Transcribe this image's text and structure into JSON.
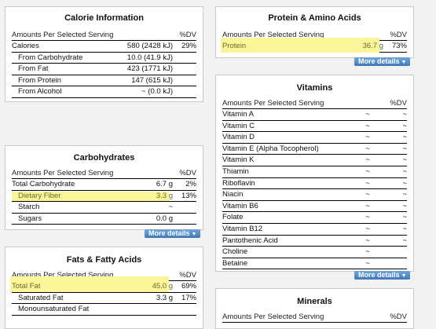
{
  "calorie": {
    "title": "Calorie Information",
    "head": {
      "name": "Amounts Per Selected Serving",
      "dv": "%DV"
    },
    "rows": [
      {
        "name": "Calories",
        "amt": "580 (2428 kJ)",
        "dv": "29%"
      },
      {
        "name": "From Carbohydrate",
        "amt": "10.0 (41.9 kJ)",
        "dv": ""
      },
      {
        "name": "From Fat",
        "amt": "423 (1771 kJ)",
        "dv": ""
      },
      {
        "name": "From Protein",
        "amt": "147 (615 kJ)",
        "dv": ""
      },
      {
        "name": "From Alcohol",
        "amt": "~ (0.0 kJ)",
        "dv": ""
      }
    ]
  },
  "carbs": {
    "title": "Carbohydrates",
    "head": {
      "name": "Amounts Per Selected Serving",
      "dv": "%DV"
    },
    "rows": [
      {
        "name": "Total Carbohydrate",
        "amt": "6.7 g",
        "dv": "2%"
      },
      {
        "name": "Dietary Fiber",
        "amt": "3.3 g",
        "dv": "13%"
      },
      {
        "name": "Starch",
        "amt": "~",
        "dv": ""
      },
      {
        "name": "Sugars",
        "amt": "0.0 g",
        "dv": ""
      }
    ],
    "more": "More details"
  },
  "fats": {
    "title": "Fats & Fatty Acids",
    "head": {
      "name": "Amounts Per Selected Serving",
      "dv": "%DV"
    },
    "rows": [
      {
        "name": "Total Fat",
        "amt": "45.0 g",
        "dv": "69%"
      },
      {
        "name": "Saturated Fat",
        "amt": "3.3 g",
        "dv": "17%"
      },
      {
        "name": "Monounsaturated Fat",
        "amt": "",
        "dv": ""
      }
    ]
  },
  "protein": {
    "title": "Protein & Amino Acids",
    "head": {
      "name": "Amounts Per Selected Serving",
      "dv": "%DV"
    },
    "rows": [
      {
        "name": "Protein",
        "amt": "36.7 g",
        "dv": "73%"
      }
    ],
    "more": "More details"
  },
  "vitamins": {
    "title": "Vitamins",
    "head": {
      "name": "Amounts Per Selected Serving",
      "dv": "%DV"
    },
    "rows": [
      {
        "name": "Vitamin A",
        "amt": "~",
        "dv": "~"
      },
      {
        "name": "Vitamin C",
        "amt": "~",
        "dv": "~"
      },
      {
        "name": "Vitamin D",
        "amt": "~",
        "dv": "~"
      },
      {
        "name": "Vitamin E (Alpha Tocopherol)",
        "amt": "~",
        "dv": "~"
      },
      {
        "name": "Vitamin K",
        "amt": "~",
        "dv": "~"
      },
      {
        "name": "Thiamin",
        "amt": "~",
        "dv": "~"
      },
      {
        "name": "Riboflavin",
        "amt": "~",
        "dv": "~"
      },
      {
        "name": "Niacin",
        "amt": "~",
        "dv": "~"
      },
      {
        "name": "Vitamin B6",
        "amt": "~",
        "dv": "~"
      },
      {
        "name": "Folate",
        "amt": "~",
        "dv": "~"
      },
      {
        "name": "Vitamin B12",
        "amt": "~",
        "dv": "~"
      },
      {
        "name": "Pantothenic Acid",
        "amt": "~",
        "dv": "~"
      },
      {
        "name": "Choline",
        "amt": "~",
        "dv": ""
      },
      {
        "name": "Betaine",
        "amt": "~",
        "dv": ""
      }
    ],
    "more": "More details"
  },
  "minerals": {
    "title": "Minerals",
    "head": {
      "name": "Amounts Per Selected Serving",
      "dv": "%DV"
    }
  },
  "colors": {
    "highlight": "#fbf59a",
    "button": "#3f78b8"
  }
}
